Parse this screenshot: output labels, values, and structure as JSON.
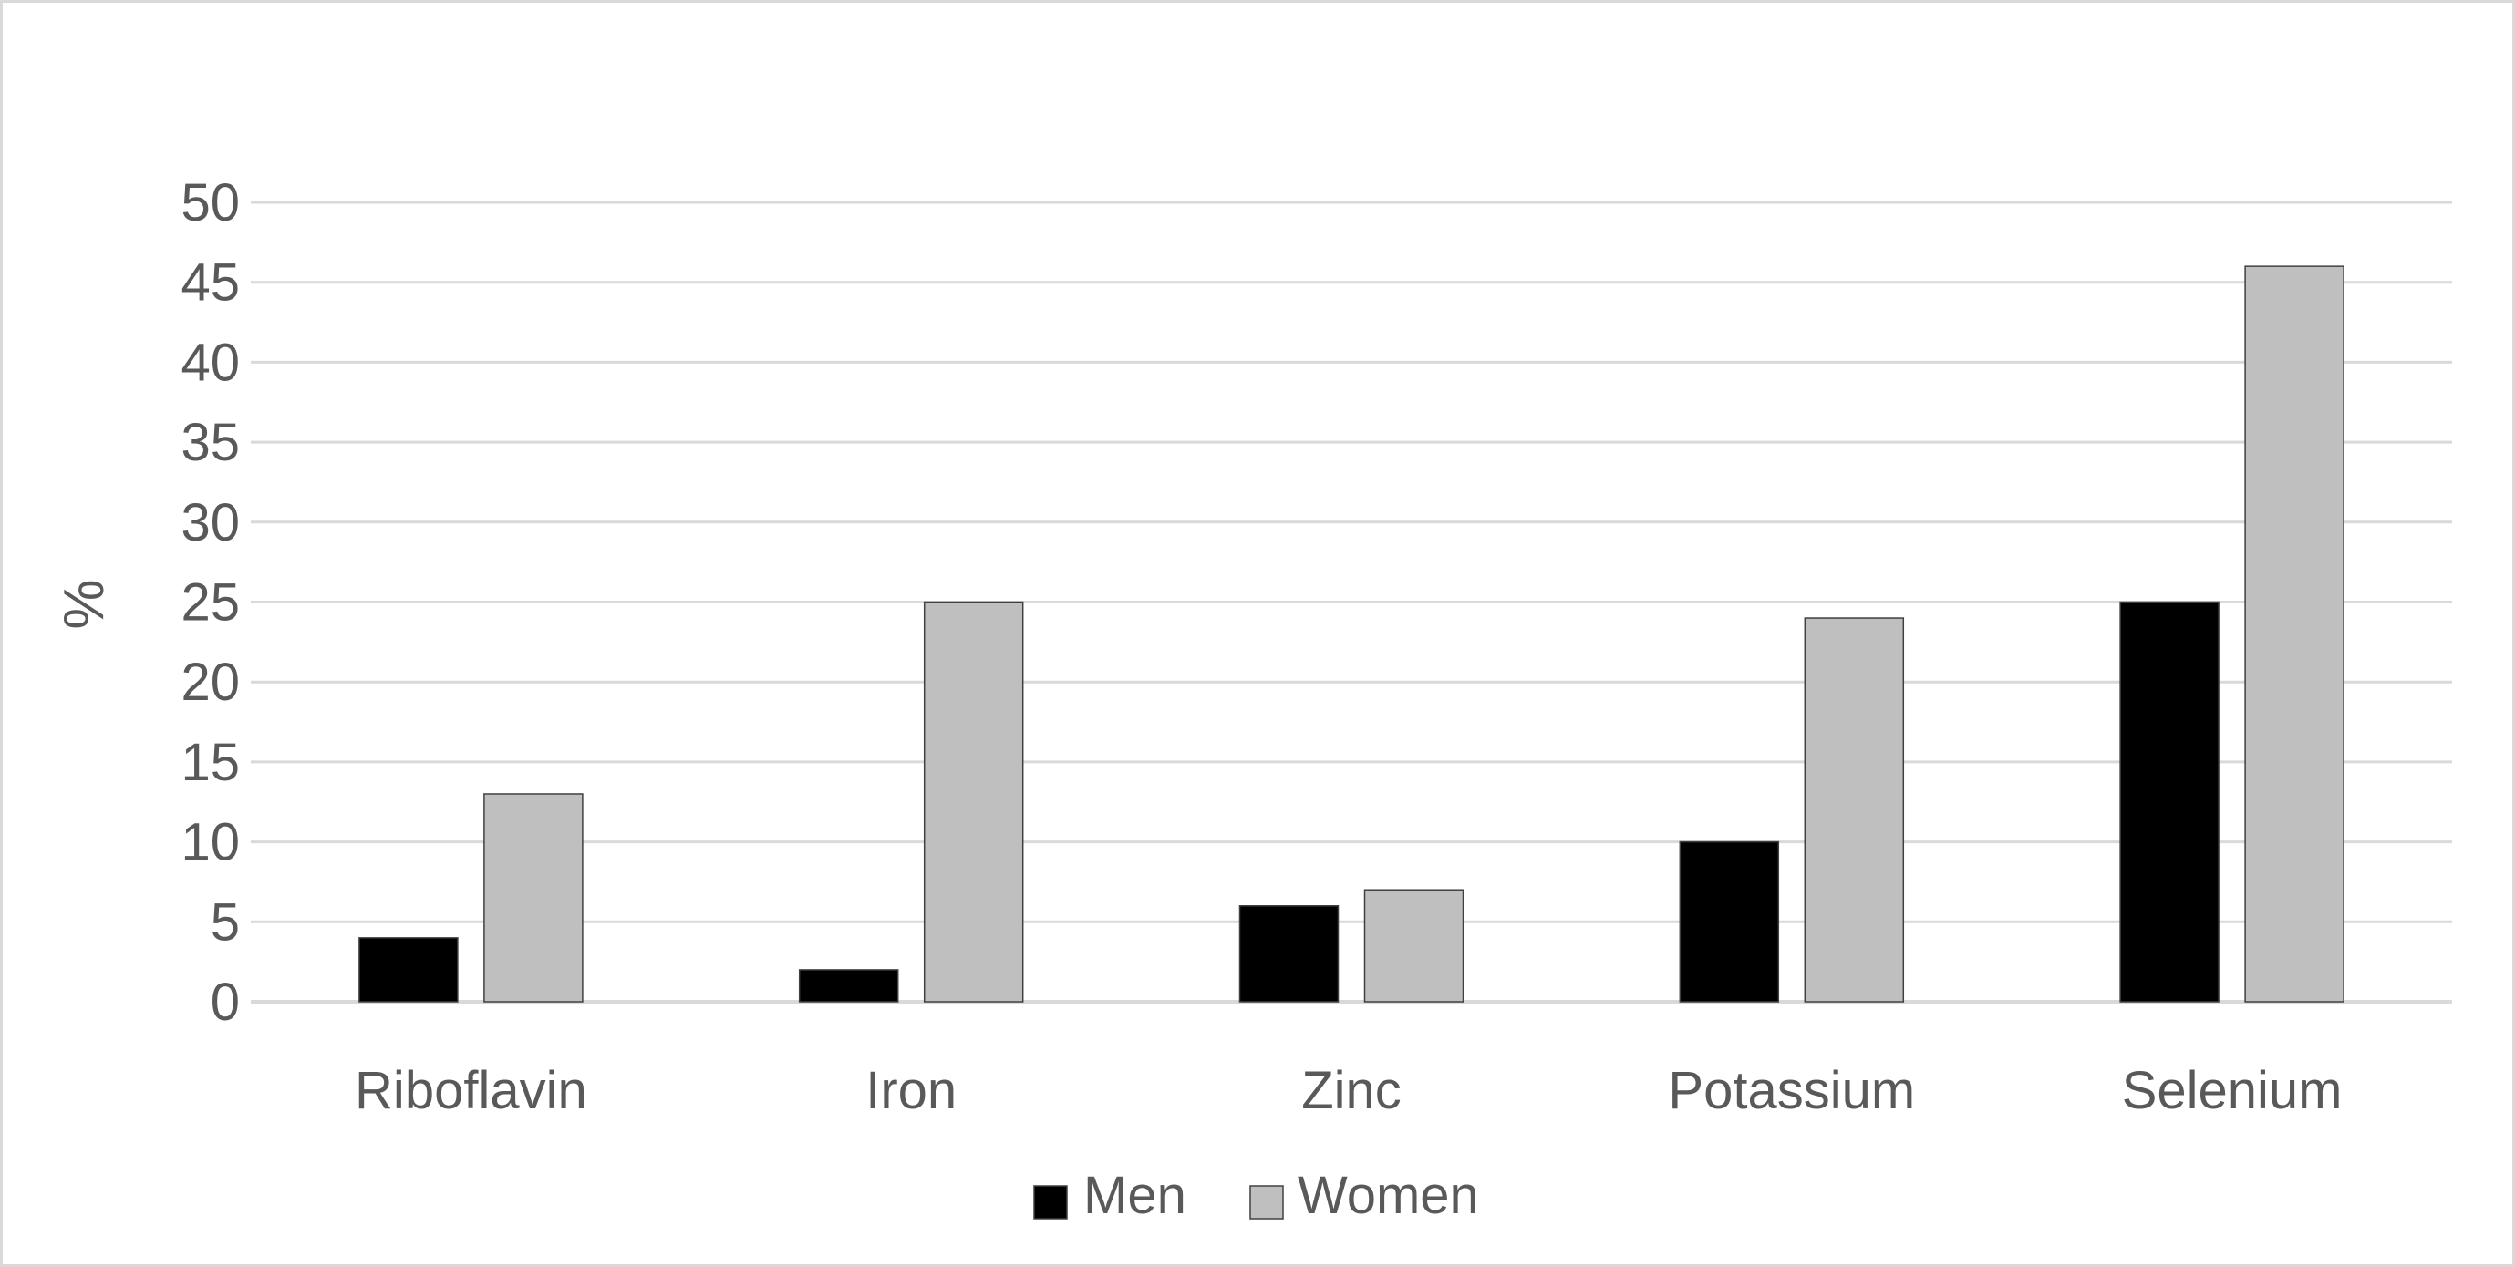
{
  "chart_data": {
    "type": "bar",
    "categories": [
      "Riboflavin",
      "Iron",
      "Zinc",
      "Potassium",
      "Selenium"
    ],
    "series": [
      {
        "name": "Men",
        "values": [
          4,
          2,
          6,
          10,
          25
        ],
        "color": "#000000"
      },
      {
        "name": "Women",
        "values": [
          13,
          25,
          7,
          24,
          46
        ],
        "color": "#bfbfbf"
      }
    ],
    "title": "",
    "xlabel": "",
    "ylabel": "%",
    "ylim": [
      0,
      50
    ],
    "yticks": [
      "0",
      "5",
      "10",
      "15",
      "20",
      "25",
      "30",
      "35",
      "40",
      "45",
      "50"
    ],
    "grid": true,
    "gridColor": "#d9d9d9",
    "legend": "bottom-center"
  }
}
